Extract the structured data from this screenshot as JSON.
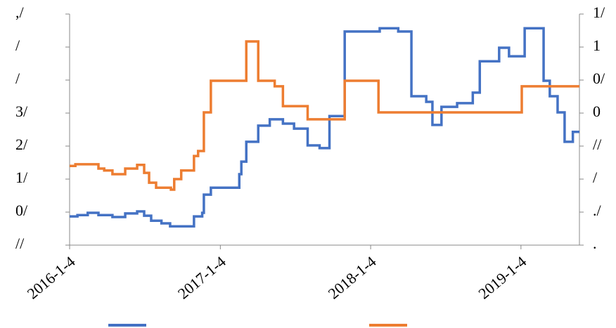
{
  "chart_data": {
    "type": "line",
    "xlim": [
      "2016-1-4",
      "2019-5-26"
    ],
    "xticks": [
      "2016-1-4",
      "2017-1-4",
      "2018-1-4",
      "2019-1-4"
    ],
    "ylim": [
      0,
      7
    ],
    "yticks": [
      {
        "value": 0,
        "label": "//"
      },
      {
        "value": 1,
        "label": "0/"
      },
      {
        "value": 2,
        "label": "1/"
      },
      {
        "value": 3,
        "label": "2/"
      },
      {
        "value": 4,
        "label": "3/"
      },
      {
        "value": 5,
        "label": "/"
      },
      {
        "value": 6,
        "label": "/"
      },
      {
        "value": 7,
        "label": ",/"
      }
    ],
    "y2lim": [
      0,
      7
    ],
    "y2ticks": [
      {
        "value": 0,
        "label": "."
      },
      {
        "value": 1,
        "label": "./"
      },
      {
        "value": 2,
        "label": "/"
      },
      {
        "value": 3,
        "label": "//"
      },
      {
        "value": 4,
        "label": "0"
      },
      {
        "value": 5,
        "label": "0/"
      },
      {
        "value": 6,
        "label": "1"
      },
      {
        "value": 7,
        "label": "1/"
      }
    ],
    "step": true,
    "series": [
      {
        "color": "#4472c4",
        "x": [
          "2016-1-4",
          "2016-1-23",
          "2016-2-17",
          "2016-3-14",
          "2016-4-17",
          "2016-5-18",
          "2016-6-16",
          "2016-7-3",
          "2016-7-20",
          "2016-8-14",
          "2016-9-4",
          "2016-11-1",
          "2016-11-21",
          "2016-11-25",
          "2016-12-12",
          "2017-2-19",
          "2017-2-24",
          "2017-3-8",
          "2017-4-6",
          "2017-5-4",
          "2017-6-5",
          "2017-7-2",
          "2017-8-4",
          "2017-9-2",
          "2017-9-26",
          "2017-11-2",
          "2018-1-26",
          "2018-3-12",
          "2018-4-13",
          "2018-5-19",
          "2018-6-3",
          "2018-6-25",
          "2018-8-2",
          "2018-9-9",
          "2018-9-26",
          "2018-11-12",
          "2018-12-6",
          "2019-1-13",
          "2019-2-28",
          "2019-3-15",
          "2019-4-3",
          "2019-4-20",
          "2019-5-10",
          "2019-5-26"
        ],
        "values": [
          0.87,
          0.91,
          0.98,
          0.91,
          0.85,
          0.96,
          1.02,
          0.89,
          0.74,
          0.66,
          0.57,
          0.87,
          0.98,
          1.53,
          1.74,
          2.15,
          2.53,
          3.13,
          3.62,
          3.81,
          3.68,
          3.53,
          3.02,
          2.94,
          3.91,
          6.47,
          6.57,
          6.47,
          4.51,
          4.34,
          3.64,
          4.19,
          4.3,
          4.62,
          5.57,
          5.98,
          5.72,
          6.57,
          4.98,
          4.51,
          4.02,
          3.13,
          3.43,
          3.43
        ]
      },
      {
        "color": "#ed7d31",
        "axis": "y2",
        "x": [
          "2016-1-4",
          "2016-1-18",
          "2016-3-14",
          "2016-3-28",
          "2016-4-17",
          "2016-5-18",
          "2016-6-16",
          "2016-7-3",
          "2016-7-15",
          "2016-8-1",
          "2016-9-6",
          "2016-9-14",
          "2016-10-1",
          "2016-11-1",
          "2016-11-11",
          "2016-11-25",
          "2016-12-12",
          "2017-3-8",
          "2017-4-6",
          "2017-5-16",
          "2017-6-5",
          "2017-8-4",
          "2017-11-2",
          "2018-1-23",
          "2019-1-6",
          "2019-5-26"
        ],
        "values": [
          2.4,
          2.45,
          2.32,
          2.26,
          2.15,
          2.32,
          2.43,
          2.19,
          1.89,
          1.74,
          1.68,
          2.0,
          2.26,
          2.7,
          2.85,
          4.02,
          4.98,
          6.17,
          4.98,
          4.81,
          4.21,
          3.81,
          4.98,
          4.02,
          4.81,
          4.81
        ]
      }
    ]
  }
}
